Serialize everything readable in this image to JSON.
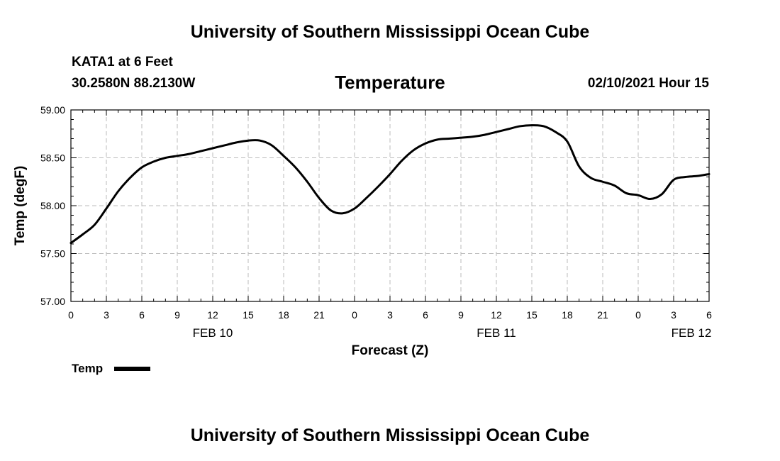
{
  "header": {
    "title": "University of Southern Mississippi Ocean Cube",
    "station": "KATA1 at 6 Feet",
    "coords": "30.2580N 88.2130W",
    "datetime": "02/10/2021 Hour 15"
  },
  "footer": {
    "title": "University of Southern Mississippi Ocean Cube"
  },
  "chart_data": {
    "type": "line",
    "title": "Temperature",
    "xlabel": "Forecast (Z)",
    "ylabel": "Temp (degF)",
    "ylim": [
      57.0,
      59.0
    ],
    "xlim": [
      0,
      54
    ],
    "grid": true,
    "legend_position": "bottom-left",
    "y_ticks": [
      "57.00",
      "57.50",
      "58.00",
      "58.50",
      "59.00"
    ],
    "x_tick_values": [
      0,
      3,
      6,
      9,
      12,
      15,
      18,
      21,
      24,
      27,
      30,
      33,
      36,
      39,
      42,
      45,
      48,
      51,
      54
    ],
    "x_tick_labels": [
      "0",
      "3",
      "6",
      "9",
      "12",
      "15",
      "18",
      "21",
      "0",
      "3",
      "6",
      "9",
      "12",
      "15",
      "18",
      "21",
      "0",
      "3",
      "6"
    ],
    "date_labels": [
      {
        "x": 12,
        "label": "FEB 10"
      },
      {
        "x": 36,
        "label": "FEB 11"
      },
      {
        "x": 52.5,
        "label": "FEB 12"
      }
    ],
    "series": [
      {
        "name": "Temp",
        "color": "#000000",
        "x": [
          0,
          1,
          2,
          3,
          4,
          5,
          6,
          7,
          8,
          9,
          10,
          11,
          12,
          13,
          14,
          15,
          16,
          17,
          18,
          19,
          20,
          21,
          22,
          23,
          24,
          25,
          26,
          27,
          28,
          29,
          30,
          31,
          32,
          33,
          34,
          35,
          36,
          37,
          38,
          39,
          40,
          41,
          42,
          43,
          44,
          45,
          46,
          47,
          48,
          49,
          50,
          51,
          52,
          53,
          54
        ],
        "y": [
          57.61,
          57.7,
          57.8,
          57.97,
          58.15,
          58.29,
          58.4,
          58.46,
          58.5,
          58.52,
          58.54,
          58.57,
          58.6,
          58.63,
          58.66,
          58.68,
          58.68,
          58.63,
          58.52,
          58.4,
          58.25,
          58.08,
          57.95,
          57.92,
          57.97,
          58.08,
          58.2,
          58.33,
          58.47,
          58.58,
          58.65,
          58.69,
          58.7,
          58.71,
          58.72,
          58.74,
          58.77,
          58.8,
          58.83,
          58.84,
          58.83,
          58.77,
          58.67,
          58.41,
          58.29,
          58.25,
          58.21,
          58.13,
          58.11,
          58.07,
          58.12,
          58.27,
          58.3,
          58.31,
          58.33
        ]
      }
    ]
  }
}
